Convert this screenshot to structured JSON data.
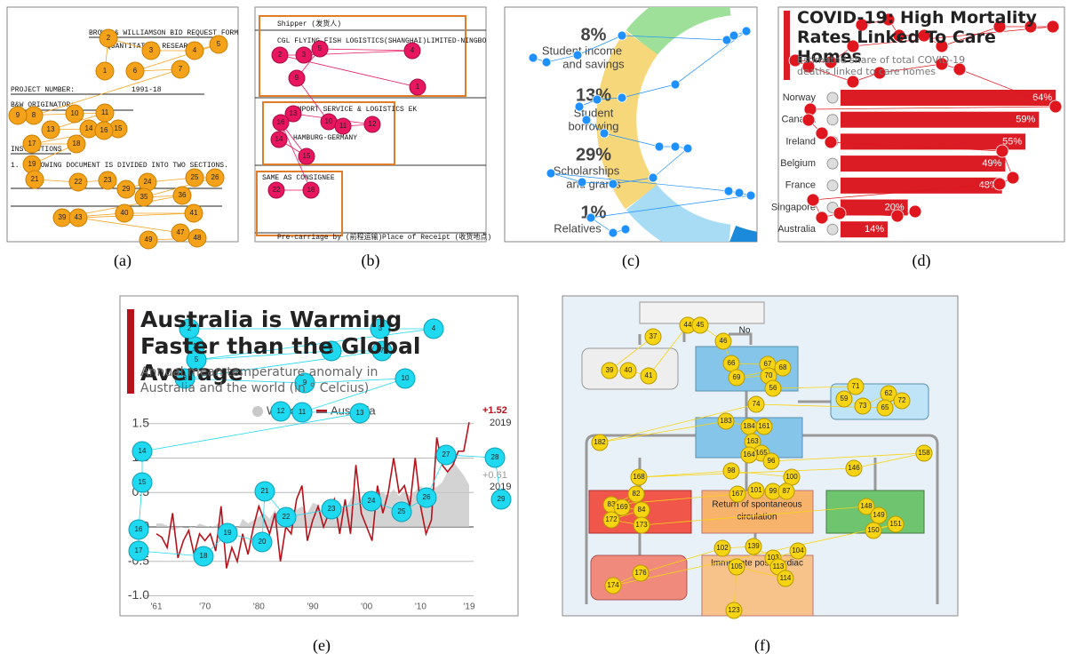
{
  "figure": {
    "panels": [
      {
        "caption": "(a)",
        "texts": [
          "BROWN & WILLIAMSON BID REQUEST FORM",
          "QUANTITATIVE RESEARCH",
          "PROJECT NUMBER:",
          "1991-18",
          "B&W ORIGINATOR:",
          "INSTRUCTIONS",
          "1. FOLLOWING DOCUMENT IS DIVIDED INTO TWO SECTIONS."
        ],
        "fixations": [
          1,
          2,
          3,
          4,
          5,
          6,
          7,
          8,
          9,
          10,
          11,
          13,
          14,
          15,
          16,
          17,
          18,
          19,
          21,
          22,
          23,
          29,
          24,
          25,
          26,
          35,
          36,
          39,
          40,
          41,
          43,
          47,
          48,
          49
        ]
      },
      {
        "caption": "(b)",
        "texts": [
          "Shipper (发货人)",
          "CGL FLYING FISH LOGISTICS(SHANGHAI)LIMITED-NINGBO",
          "IMPORT SERVICE & LOGISTICS EK",
          "HAMBURG-GERMANY",
          "SAME AS CONSIGNEE",
          "Pre-carriage by (前程运输)",
          "Place of Receipt (收货地点)"
        ],
        "fixations": [
          1,
          2,
          3,
          4,
          5,
          9,
          10,
          11,
          12,
          13,
          14,
          15,
          16,
          18,
          22
        ]
      },
      {
        "caption": "(c)",
        "texts": [
          "8%",
          "Student income",
          "and savings",
          "13%",
          "Student",
          "borrowing",
          "29%",
          "Scholarships",
          "and grants",
          "1%",
          "Relatives"
        ]
      },
      {
        "caption": "(d)",
        "chart_data": {
          "type": "bar",
          "title": "COVID-19: High Mortality Rates Linked To Care Homes",
          "subtitle": "Estimated share of total COVID-19 deaths linked to care homes",
          "categories": [
            "Norway",
            "Canada",
            "Ireland",
            "Belgium",
            "France",
            "Singapore",
            "Australia"
          ],
          "values": [
            64,
            59,
            55,
            49,
            48,
            20,
            14
          ],
          "value_labels": [
            "64%",
            "59%",
            "55%",
            "49%",
            "48%",
            "20%",
            "14%"
          ],
          "color": "#dc1c24",
          "xlim": [
            0,
            65
          ]
        }
      },
      {
        "caption": "(e)",
        "chart_data": {
          "type": "line",
          "title": "Australia is Warming Faster than the Global Average",
          "subtitle": "Annual mean temperature anomaly in Australia and the world (in ° Celcius)",
          "x": [
            1961,
            1962,
            1963,
            1964,
            1965,
            1966,
            1967,
            1968,
            1969,
            1970,
            1971,
            1972,
            1973,
            1974,
            1975,
            1976,
            1977,
            1978,
            1979,
            1980,
            1981,
            1982,
            1983,
            1984,
            1985,
            1986,
            1987,
            1988,
            1989,
            1990,
            1991,
            1992,
            1993,
            1994,
            1995,
            1996,
            1997,
            1998,
            1999,
            2000,
            2001,
            2002,
            2003,
            2004,
            2005,
            2006,
            2007,
            2008,
            2009,
            2010,
            2011,
            2012,
            2013,
            2014,
            2015,
            2016,
            2017,
            2018,
            2019
          ],
          "series": [
            {
              "name": "World",
              "color": "#c8c8c8",
              "values": [
                0.05,
                0.05,
                0.02,
                -0.05,
                -0.02,
                0.0,
                0.0,
                -0.02,
                0.05,
                0.02,
                0.0,
                0.02,
                0.1,
                -0.05,
                0.0,
                -0.05,
                0.12,
                0.05,
                0.1,
                0.15,
                0.2,
                0.12,
                0.25,
                0.08,
                0.08,
                0.12,
                0.25,
                0.3,
                0.2,
                0.35,
                0.32,
                0.15,
                0.17,
                0.25,
                0.35,
                0.25,
                0.4,
                0.55,
                0.3,
                0.3,
                0.4,
                0.5,
                0.5,
                0.45,
                0.55,
                0.45,
                0.52,
                0.45,
                0.52,
                0.6,
                0.5,
                0.55,
                0.58,
                0.65,
                0.8,
                0.95,
                0.85,
                0.75,
                0.61
              ]
            },
            {
              "name": "Australia",
              "color": "#b5121b",
              "values": [
                -0.1,
                -0.15,
                -0.3,
                0.2,
                -0.45,
                -0.2,
                -0.05,
                -0.4,
                -0.1,
                -0.2,
                -0.1,
                -0.35,
                0.3,
                -0.6,
                -0.3,
                -0.5,
                -0.1,
                -0.4,
                0.0,
                0.3,
                0.1,
                -0.1,
                0.2,
                -0.5,
                0.0,
                -0.1,
                0.4,
                0.6,
                -0.2,
                0.1,
                0.3,
                0.0,
                0.2,
                0.4,
                -0.1,
                0.4,
                -0.1,
                0.9,
                0.2,
                0.0,
                -0.2,
                0.6,
                0.2,
                0.5,
                1.0,
                0.5,
                0.6,
                0.3,
                1.0,
                0.3,
                -0.1,
                0.1,
                1.3,
                0.9,
                0.8,
                0.9,
                1.1,
                1.1,
                1.52
              ]
            }
          ],
          "xlim": [
            1961,
            2019
          ],
          "xticks": [
            {
              "value": 1961,
              "label": "'61"
            },
            {
              "value": 1970,
              "label": "'70"
            },
            {
              "value": 1980,
              "label": "'80"
            },
            {
              "value": 1990,
              "label": "'90"
            },
            {
              "value": 2000,
              "label": "'00"
            },
            {
              "value": 2010,
              "label": "'10"
            },
            {
              "value": 2019,
              "label": "'19"
            }
          ],
          "ylim": [
            -1.2,
            1.6
          ],
          "yticks": [
            {
              "value": 1.5,
              "label": "1.5"
            },
            {
              "value": 1,
              "label": "1.0"
            },
            {
              "value": 0.5,
              "label": "0.5"
            },
            {
              "value": 0,
              "label": "0.0"
            },
            {
              "value": -0.5,
              "label": "-0.5"
            },
            {
              "value": -1,
              "label": "-1.0"
            }
          ],
          "grid": true,
          "annotations": [
            "+1.52",
            "2019",
            "+0.61",
            "2019"
          ]
        },
        "fixations": [
          1,
          2,
          3,
          4,
          5,
          6,
          7,
          8,
          9,
          10,
          11,
          12,
          13,
          14,
          15,
          16,
          17,
          18,
          19,
          20,
          21,
          22,
          23,
          24,
          25,
          26,
          27,
          28,
          29
        ]
      },
      {
        "caption": "(f)",
        "texts": [
          "No",
          "Return of spontaneous",
          "circulation",
          "Immediate post-cardiac"
        ],
        "fixations": [
          37,
          39,
          40,
          41,
          44,
          45,
          46,
          66,
          67,
          68,
          69,
          70,
          56,
          71,
          59,
          73,
          62,
          72,
          65,
          74,
          182,
          183,
          184,
          161,
          163,
          165,
          164,
          96,
          158,
          146,
          168,
          98,
          100,
          99,
          87,
          101,
          167,
          83,
          82,
          169,
          84,
          172,
          173,
          148,
          149,
          150,
          151,
          174,
          176,
          102,
          139,
          103,
          104,
          113,
          114,
          105,
          123
        ]
      }
    ]
  }
}
